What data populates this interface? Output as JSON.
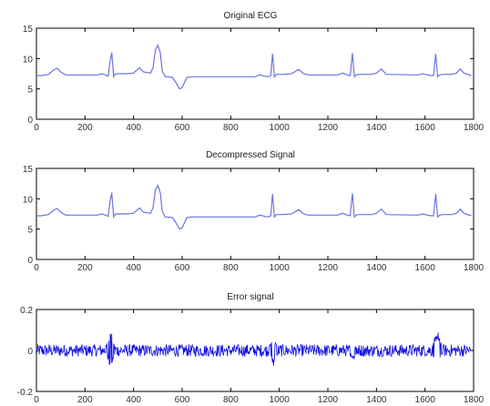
{
  "chart_data": [
    {
      "type": "line",
      "title": "Original ECG",
      "xlim": [
        0,
        1800
      ],
      "ylim": [
        0,
        15
      ],
      "xticks": [
        0,
        200,
        400,
        600,
        800,
        1000,
        1200,
        1400,
        1600,
        1800
      ],
      "yticks": [
        0,
        5,
        10,
        15
      ],
      "grid": false,
      "series": [
        {
          "color": "#6b74e0",
          "x": [
            0,
            20,
            50,
            70,
            85,
            100,
            120,
            140,
            250,
            270,
            285,
            295,
            303,
            310,
            318,
            326,
            340,
            370,
            400,
            410,
            425,
            440,
            470,
            480,
            490,
            500,
            510,
            518,
            530,
            560,
            575,
            590,
            600,
            610,
            620,
            640,
            900,
            920,
            940,
            955,
            965,
            972,
            980,
            988,
            996,
            1010,
            1050,
            1080,
            1100,
            1120,
            1240,
            1260,
            1280,
            1292,
            1301,
            1309,
            1317,
            1325,
            1340,
            1380,
            1400,
            1420,
            1440,
            1570,
            1590,
            1610,
            1625,
            1635,
            1644,
            1652,
            1660,
            1675,
            1710,
            1730,
            1745,
            1760,
            1790
          ],
          "y": [
            7.2,
            7.2,
            7.4,
            8.1,
            8.4,
            7.8,
            7.3,
            7.3,
            7.3,
            7.5,
            7.3,
            7.1,
            9.5,
            11.0,
            7.0,
            7.5,
            7.5,
            7.5,
            7.6,
            8.0,
            8.5,
            7.8,
            7.6,
            8.5,
            11.5,
            12.2,
            11.0,
            8.0,
            7.0,
            6.9,
            6.0,
            5.0,
            5.2,
            6.1,
            6.9,
            7.0,
            7.0,
            7.3,
            7.1,
            7.0,
            7.2,
            10.8,
            7.0,
            7.4,
            7.4,
            7.4,
            7.5,
            8.2,
            7.5,
            7.3,
            7.3,
            7.6,
            7.3,
            7.2,
            10.9,
            7.0,
            7.3,
            7.4,
            7.4,
            7.4,
            7.6,
            8.3,
            7.4,
            7.3,
            7.5,
            7.3,
            7.2,
            7.2,
            10.8,
            7.0,
            7.3,
            7.4,
            7.4,
            7.6,
            8.3,
            7.6,
            7.2
          ]
        }
      ]
    },
    {
      "type": "line",
      "title": "Decompressed Signal",
      "xlim": [
        0,
        1800
      ],
      "ylim": [
        0,
        15
      ],
      "xticks": [
        0,
        200,
        400,
        600,
        800,
        1000,
        1200,
        1400,
        1600,
        1800
      ],
      "yticks": [
        0,
        5,
        10,
        15
      ],
      "grid": false,
      "series": [
        {
          "color": "#6b74e0",
          "x": [
            0,
            20,
            50,
            70,
            85,
            100,
            120,
            140,
            250,
            270,
            285,
            295,
            303,
            310,
            318,
            326,
            340,
            370,
            400,
            410,
            425,
            440,
            470,
            480,
            490,
            500,
            510,
            518,
            530,
            560,
            575,
            590,
            600,
            610,
            620,
            640,
            900,
            920,
            940,
            955,
            965,
            972,
            980,
            988,
            996,
            1010,
            1050,
            1080,
            1100,
            1120,
            1240,
            1260,
            1280,
            1292,
            1301,
            1309,
            1317,
            1325,
            1340,
            1380,
            1400,
            1420,
            1440,
            1570,
            1590,
            1610,
            1625,
            1635,
            1644,
            1652,
            1660,
            1675,
            1710,
            1730,
            1745,
            1760,
            1790
          ],
          "y": [
            7.2,
            7.2,
            7.4,
            8.1,
            8.4,
            7.8,
            7.3,
            7.3,
            7.3,
            7.5,
            7.3,
            7.1,
            9.5,
            11.0,
            7.0,
            7.5,
            7.5,
            7.5,
            7.6,
            8.0,
            8.5,
            7.8,
            7.6,
            8.5,
            11.5,
            12.2,
            11.0,
            8.0,
            7.0,
            6.9,
            6.0,
            5.0,
            5.2,
            6.1,
            6.9,
            7.0,
            7.0,
            7.3,
            7.1,
            7.0,
            7.2,
            10.8,
            7.0,
            7.4,
            7.4,
            7.4,
            7.5,
            8.2,
            7.5,
            7.3,
            7.3,
            7.6,
            7.3,
            7.2,
            10.9,
            7.0,
            7.3,
            7.4,
            7.4,
            7.4,
            7.6,
            8.3,
            7.4,
            7.3,
            7.5,
            7.3,
            7.2,
            7.2,
            10.8,
            7.0,
            7.3,
            7.4,
            7.4,
            7.6,
            8.3,
            7.6,
            7.2
          ]
        }
      ]
    },
    {
      "type": "line",
      "title": "Error signal",
      "xlim": [
        0,
        1800
      ],
      "ylim": [
        -0.2,
        0.2
      ],
      "xticks": [
        0,
        200,
        400,
        600,
        800,
        1000,
        1200,
        1400,
        1600,
        1800
      ],
      "yticks": [
        -0.2,
        0,
        0.2
      ],
      "ytick_labels": [
        "-0.2",
        "0",
        "0.2"
      ],
      "grid": false,
      "series": [
        {
          "color": "#1010e0",
          "x_start": 0,
          "x_end": 1790,
          "noise_band": 0.03,
          "spikes": [
            {
              "x": 305,
              "min": -0.09,
              "max": 0.11
            },
            {
              "x": 975,
              "min": -0.08,
              "max": 0.07
            },
            {
              "x": 1305,
              "min": -0.05,
              "max": 0.05
            },
            {
              "x": 1650,
              "min": -0.12,
              "max": 0.11
            }
          ]
        }
      ]
    }
  ]
}
